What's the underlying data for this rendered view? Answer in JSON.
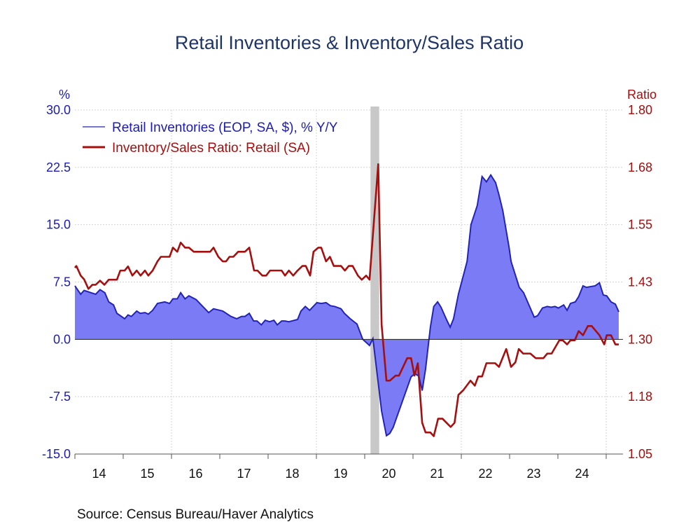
{
  "chart_data": {
    "type": "line",
    "title": "Retail Inventories & Inventory/Sales Ratio",
    "source": "Source:  Census Bureau/Haver Analytics",
    "left_axis": {
      "unit_label": "%",
      "ylim": [
        -15,
        30
      ],
      "ticks": [
        "30.0",
        "22.5",
        "15.0",
        "7.5",
        "0.0",
        "-7.5",
        "-15.0"
      ],
      "tick_values": [
        30,
        22.5,
        15,
        7.5,
        0,
        -7.5,
        -15
      ],
      "color": "#1c1cb4"
    },
    "right_axis": {
      "unit_label": "Ratio",
      "ylim": [
        1.05,
        1.8
      ],
      "ticks": [
        "1.80",
        "1.68",
        "1.55",
        "1.43",
        "1.30",
        "1.18",
        "1.05"
      ],
      "tick_values": [
        1.8,
        1.675,
        1.55,
        1.425,
        1.3,
        1.175,
        1.05
      ],
      "color": "#a50f0f"
    },
    "x_axis": {
      "xlim": [
        2014,
        2025.3
      ],
      "tick_labels": [
        "14",
        "15",
        "16",
        "17",
        "18",
        "19",
        "20",
        "21",
        "22",
        "23",
        "24"
      ],
      "gridline_years": [
        2016,
        2019,
        2022,
        2025
      ]
    },
    "recession": [
      2020.12,
      2020.3
    ],
    "legend_placement": "top-left",
    "series": [
      {
        "name": "Retail Inventories (EOP, SA, $), % Y/Y",
        "axis": "left",
        "style": "area",
        "color": "#2323b4",
        "fill": "#7b7bf5",
        "points": [
          [
            2014.0,
            7.0
          ],
          [
            2014.12,
            5.9
          ],
          [
            2014.19,
            6.4
          ],
          [
            2014.43,
            5.9
          ],
          [
            2014.52,
            6.5
          ],
          [
            2014.62,
            6.1
          ],
          [
            2014.7,
            4.9
          ],
          [
            2014.8,
            4.5
          ],
          [
            2014.87,
            3.4
          ],
          [
            2015.03,
            2.7
          ],
          [
            2015.1,
            3.2
          ],
          [
            2015.17,
            3.0
          ],
          [
            2015.28,
            3.7
          ],
          [
            2015.35,
            3.4
          ],
          [
            2015.45,
            3.5
          ],
          [
            2015.52,
            3.3
          ],
          [
            2015.61,
            3.8
          ],
          [
            2015.71,
            4.7
          ],
          [
            2015.86,
            4.9
          ],
          [
            2015.96,
            4.7
          ],
          [
            2016.03,
            5.3
          ],
          [
            2016.12,
            5.3
          ],
          [
            2016.19,
            6.1
          ],
          [
            2016.28,
            5.3
          ],
          [
            2016.36,
            5.7
          ],
          [
            2016.51,
            5.2
          ],
          [
            2016.77,
            3.5
          ],
          [
            2016.87,
            4.0
          ],
          [
            2017.06,
            3.7
          ],
          [
            2017.23,
            3.0
          ],
          [
            2017.35,
            2.7
          ],
          [
            2017.45,
            3.0
          ],
          [
            2017.52,
            3.0
          ],
          [
            2017.61,
            3.4
          ],
          [
            2017.7,
            2.4
          ],
          [
            2017.77,
            2.4
          ],
          [
            2017.86,
            1.9
          ],
          [
            2017.94,
            2.5
          ],
          [
            2018.03,
            2.3
          ],
          [
            2018.12,
            2.5
          ],
          [
            2018.19,
            1.9
          ],
          [
            2018.28,
            2.4
          ],
          [
            2018.35,
            2.4
          ],
          [
            2018.43,
            2.3
          ],
          [
            2018.61,
            2.6
          ],
          [
            2018.68,
            3.7
          ],
          [
            2018.77,
            4.3
          ],
          [
            2018.86,
            3.8
          ],
          [
            2019.01,
            4.8
          ],
          [
            2019.1,
            4.7
          ],
          [
            2019.2,
            4.8
          ],
          [
            2019.29,
            4.4
          ],
          [
            2019.38,
            4.3
          ],
          [
            2019.51,
            4.0
          ],
          [
            2019.58,
            3.4
          ],
          [
            2019.7,
            2.7
          ],
          [
            2019.84,
            2.0
          ],
          [
            2019.96,
            0.0
          ],
          [
            2020.1,
            -0.8
          ],
          [
            2020.17,
            0.1
          ],
          [
            2020.35,
            -9.4
          ],
          [
            2020.45,
            -12.6
          ],
          [
            2020.52,
            -12.3
          ],
          [
            2020.59,
            -11.5
          ],
          [
            2020.96,
            -4.9
          ],
          [
            2021.04,
            -4.5
          ],
          [
            2021.12,
            -4.8
          ],
          [
            2021.19,
            -6.7
          ],
          [
            2021.26,
            -3.9
          ],
          [
            2021.36,
            1.6
          ],
          [
            2021.43,
            4.3
          ],
          [
            2021.51,
            4.9
          ],
          [
            2021.58,
            4.2
          ],
          [
            2021.7,
            2.5
          ],
          [
            2021.77,
            1.6
          ],
          [
            2021.84,
            2.7
          ],
          [
            2021.94,
            5.9
          ],
          [
            2022.12,
            10.2
          ],
          [
            2022.2,
            15.0
          ],
          [
            2022.33,
            17.5
          ],
          [
            2022.43,
            21.3
          ],
          [
            2022.52,
            20.6
          ],
          [
            2022.61,
            21.5
          ],
          [
            2022.71,
            20.5
          ],
          [
            2022.78,
            18.9
          ],
          [
            2022.86,
            16.8
          ],
          [
            2022.99,
            12.0
          ],
          [
            2023.03,
            10.2
          ],
          [
            2023.2,
            6.8
          ],
          [
            2023.29,
            6.1
          ],
          [
            2023.51,
            2.9
          ],
          [
            2023.58,
            3.1
          ],
          [
            2023.68,
            4.1
          ],
          [
            2023.78,
            4.3
          ],
          [
            2023.86,
            4.2
          ],
          [
            2023.94,
            4.3
          ],
          [
            2024.01,
            4.1
          ],
          [
            2024.12,
            4.5
          ],
          [
            2024.19,
            3.8
          ],
          [
            2024.26,
            4.7
          ],
          [
            2024.36,
            4.9
          ],
          [
            2024.43,
            5.6
          ],
          [
            2024.52,
            7.0
          ],
          [
            2024.59,
            6.8
          ],
          [
            2024.77,
            7.0
          ],
          [
            2024.86,
            7.4
          ],
          [
            2024.94,
            5.8
          ],
          [
            2025.01,
            5.7
          ],
          [
            2025.1,
            4.9
          ],
          [
            2025.19,
            4.6
          ],
          [
            2025.26,
            3.6
          ]
        ]
      },
      {
        "name": "Inventory/Sales Ratio: Retail (SA)",
        "axis": "right",
        "style": "line",
        "color": "#a50f0f",
        "points": [
          [
            2014.0,
            1.456
          ],
          [
            2014.03,
            1.46
          ],
          [
            2014.12,
            1.439
          ],
          [
            2014.19,
            1.431
          ],
          [
            2014.28,
            1.41
          ],
          [
            2014.36,
            1.419
          ],
          [
            2014.43,
            1.419
          ],
          [
            2014.52,
            1.428
          ],
          [
            2014.61,
            1.419
          ],
          [
            2014.7,
            1.43
          ],
          [
            2014.87,
            1.43
          ],
          [
            2014.94,
            1.45
          ],
          [
            2015.03,
            1.45
          ],
          [
            2015.1,
            1.459
          ],
          [
            2015.19,
            1.439
          ],
          [
            2015.28,
            1.45
          ],
          [
            2015.36,
            1.439
          ],
          [
            2015.45,
            1.45
          ],
          [
            2015.52,
            1.439
          ],
          [
            2015.61,
            1.45
          ],
          [
            2015.71,
            1.47
          ],
          [
            2015.78,
            1.48
          ],
          [
            2015.96,
            1.48
          ],
          [
            2016.03,
            1.5
          ],
          [
            2016.12,
            1.491
          ],
          [
            2016.19,
            1.511
          ],
          [
            2016.28,
            1.5
          ],
          [
            2016.36,
            1.5
          ],
          [
            2016.46,
            1.491
          ],
          [
            2016.8,
            1.491
          ],
          [
            2016.87,
            1.5
          ],
          [
            2016.97,
            1.48
          ],
          [
            2017.06,
            1.47
          ],
          [
            2017.13,
            1.47
          ],
          [
            2017.2,
            1.48
          ],
          [
            2017.28,
            1.48
          ],
          [
            2017.38,
            1.491
          ],
          [
            2017.52,
            1.491
          ],
          [
            2017.61,
            1.5
          ],
          [
            2017.71,
            1.45
          ],
          [
            2017.78,
            1.45
          ],
          [
            2017.88,
            1.439
          ],
          [
            2017.96,
            1.439
          ],
          [
            2018.04,
            1.45
          ],
          [
            2018.28,
            1.45
          ],
          [
            2018.35,
            1.439
          ],
          [
            2018.43,
            1.45
          ],
          [
            2018.52,
            1.439
          ],
          [
            2018.61,
            1.45
          ],
          [
            2018.71,
            1.46
          ],
          [
            2018.78,
            1.46
          ],
          [
            2018.87,
            1.439
          ],
          [
            2018.94,
            1.491
          ],
          [
            2019.04,
            1.5
          ],
          [
            2019.1,
            1.5
          ],
          [
            2019.2,
            1.47
          ],
          [
            2019.28,
            1.48
          ],
          [
            2019.36,
            1.46
          ],
          [
            2019.51,
            1.46
          ],
          [
            2019.59,
            1.45
          ],
          [
            2019.67,
            1.46
          ],
          [
            2019.75,
            1.46
          ],
          [
            2019.86,
            1.439
          ],
          [
            2019.94,
            1.43
          ],
          [
            2020.03,
            1.439
          ],
          [
            2020.1,
            1.43
          ],
          [
            2020.28,
            1.682
          ],
          [
            2020.35,
            1.332
          ],
          [
            2020.45,
            1.21
          ],
          [
            2020.52,
            1.21
          ],
          [
            2020.64,
            1.221
          ],
          [
            2020.71,
            1.221
          ],
          [
            2020.88,
            1.259
          ],
          [
            2020.96,
            1.259
          ],
          [
            2021.03,
            1.221
          ],
          [
            2021.1,
            1.248
          ],
          [
            2021.19,
            1.118
          ],
          [
            2021.26,
            1.097
          ],
          [
            2021.36,
            1.097
          ],
          [
            2021.43,
            1.089
          ],
          [
            2021.52,
            1.127
          ],
          [
            2021.61,
            1.127
          ],
          [
            2021.78,
            1.109
          ],
          [
            2021.86,
            1.118
          ],
          [
            2021.94,
            1.179
          ],
          [
            2022.04,
            1.189
          ],
          [
            2022.19,
            1.21
          ],
          [
            2022.28,
            1.199
          ],
          [
            2022.35,
            1.219
          ],
          [
            2022.43,
            1.219
          ],
          [
            2022.52,
            1.248
          ],
          [
            2022.7,
            1.248
          ],
          [
            2022.78,
            1.24
          ],
          [
            2022.93,
            1.279
          ],
          [
            2023.03,
            1.24
          ],
          [
            2023.12,
            1.25
          ],
          [
            2023.19,
            1.279
          ],
          [
            2023.28,
            1.269
          ],
          [
            2023.43,
            1.269
          ],
          [
            2023.54,
            1.259
          ],
          [
            2023.7,
            1.259
          ],
          [
            2023.78,
            1.269
          ],
          [
            2023.87,
            1.269
          ],
          [
            2024.03,
            1.298
          ],
          [
            2024.1,
            1.298
          ],
          [
            2024.19,
            1.289
          ],
          [
            2024.26,
            1.298
          ],
          [
            2024.35,
            1.298
          ],
          [
            2024.43,
            1.318
          ],
          [
            2024.52,
            1.309
          ],
          [
            2024.62,
            1.329
          ],
          [
            2024.7,
            1.329
          ],
          [
            2024.86,
            1.309
          ],
          [
            2024.96,
            1.289
          ],
          [
            2025.01,
            1.309
          ],
          [
            2025.1,
            1.309
          ],
          [
            2025.19,
            1.289
          ],
          [
            2025.26,
            1.289
          ]
        ]
      }
    ]
  }
}
